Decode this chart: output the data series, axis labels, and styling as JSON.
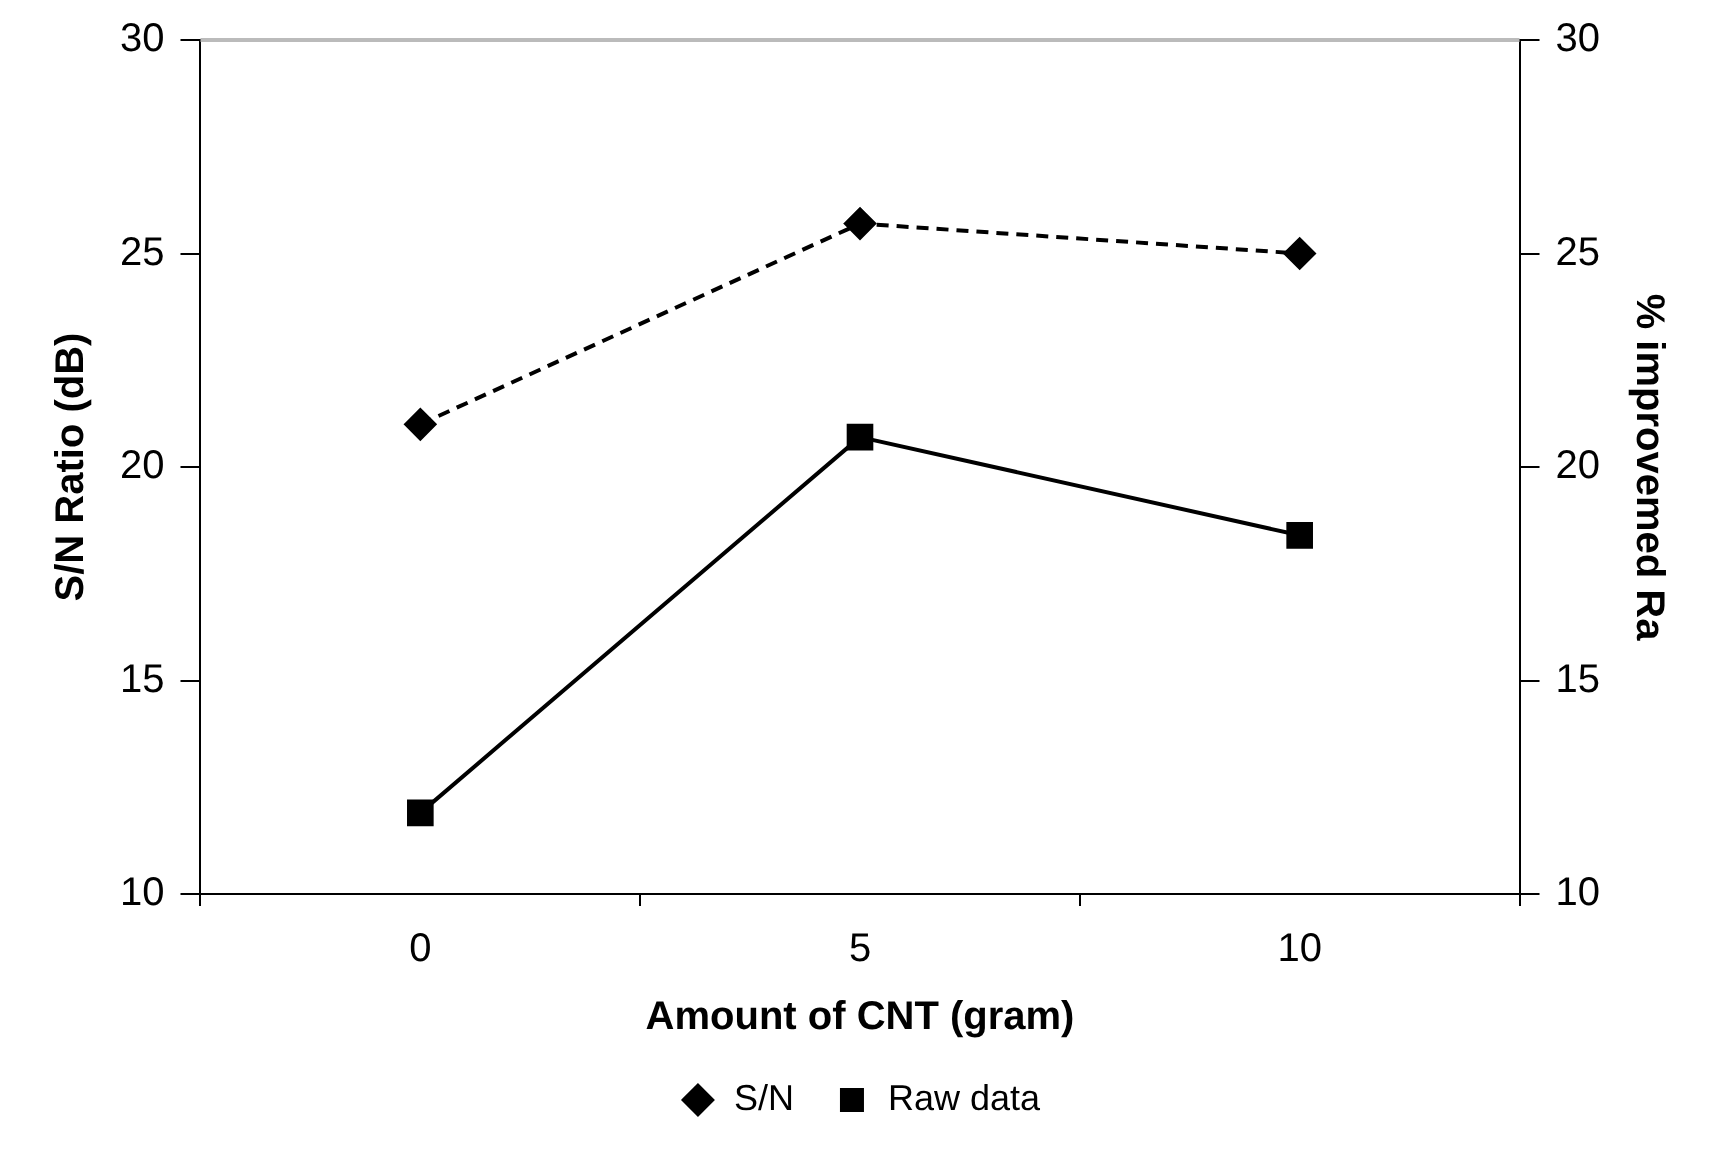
{
  "chart_data": {
    "type": "line",
    "xlabel": "Amount of CNT (gram)",
    "ylabel": "S/N Ratio (dB)",
    "y2label": "% improvemed Ra",
    "categories": [
      "0",
      "5",
      "10"
    ],
    "series": [
      {
        "name": "S/N",
        "color": "#000000",
        "values": [
          21.0,
          25.7,
          25.0
        ],
        "marker": "diamond",
        "line_style": "dashed"
      },
      {
        "name": "Raw data",
        "color": "#000000",
        "values": [
          11.9,
          20.7,
          18.4
        ],
        "marker": "square",
        "line_style": "solid"
      }
    ],
    "ylim": [
      10,
      30
    ],
    "yticks": [
      10,
      15,
      20,
      25,
      30
    ],
    "y2lim": [
      10,
      30
    ],
    "y2ticks": [
      10,
      15,
      20,
      25,
      30
    ],
    "grid": false,
    "legend": "bottom"
  }
}
